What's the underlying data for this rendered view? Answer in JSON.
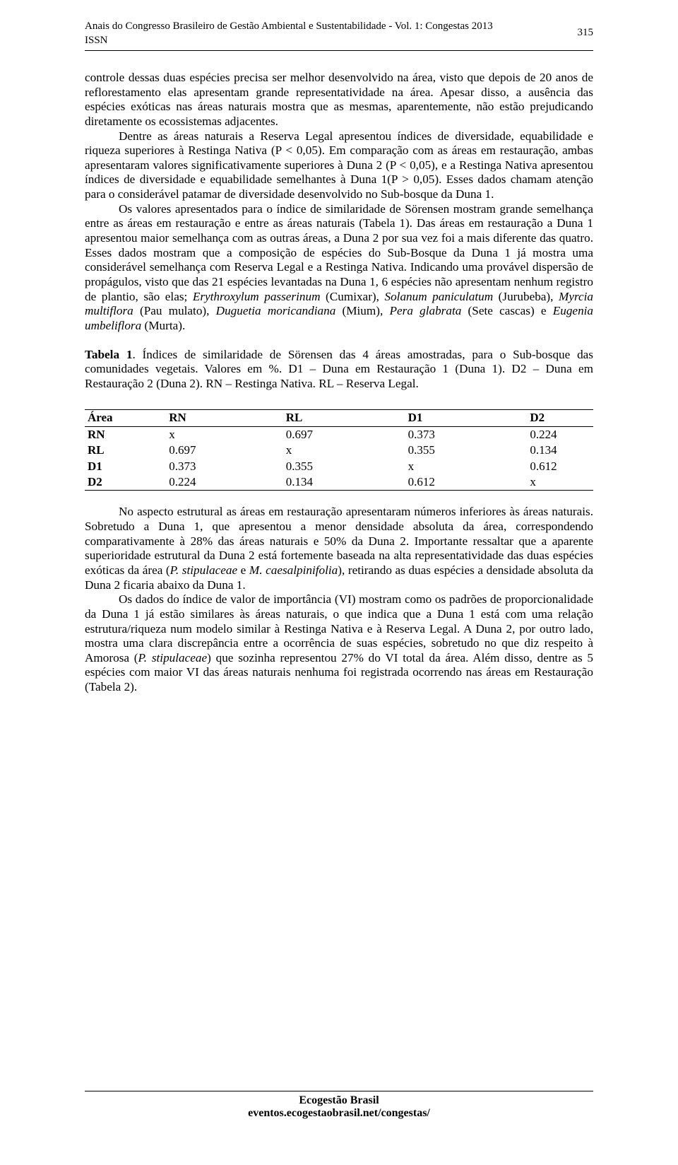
{
  "header": {
    "line1": "Anais do Congresso Brasileiro de Gestão Ambiental e Sustentabilidade - Vol. 1: Congestas 2013",
    "line2": "ISSN",
    "page_number": "315"
  },
  "paragraphs": {
    "p1": "controle dessas duas espécies precisa ser melhor desenvolvido na área, visto que depois de 20 anos de reflorestamento elas apresentam grande representatividade na área. Apesar disso, a ausência das espécies exóticas nas áreas naturais mostra que as mesmas, aparentemente, não estão prejudicando diretamente os ecossistemas adjacentes.",
    "p2": "Dentre as áreas naturais a Reserva Legal apresentou índices de diversidade, equabilidade e riqueza superiores à Restinga Nativa (P < 0,05). Em comparação com as áreas em restauração, ambas apresentaram valores significativamente superiores à Duna 2 (P < 0,05), e a Restinga Nativa apresentou índices de diversidade e equabilidade semelhantes à Duna 1(P > 0,05). Esses dados chamam atenção para o considerável patamar de diversidade desenvolvido no Sub-bosque da Duna 1.",
    "p3a": "Os valores apresentados para o índice de similaridade de Sörensen mostram grande semelhança entre as áreas em restauração e entre as áreas naturais (Tabela 1). Das áreas em restauração a Duna 1 apresentou maior semelhança com as outras áreas, a Duna 2 por sua vez foi a mais diferente das quatro. Esses dados mostram que a composição de espécies do Sub-Bosque da Duna 1 já mostra uma considerável semelhança com Reserva Legal e a Restinga Nativa. Indicando uma provável dispersão de propágulos, visto que das 21 espécies levantadas na Duna 1, 6 espécies não apresentam nenhum registro de plantio, são elas; ",
    "p3_sp1": "Erythroxylum passerinum",
    "p3b": " (Cumixar), ",
    "p3_sp2": "Solanum paniculatum",
    "p3c": " (Jurubeba), ",
    "p3_sp3": "Myrcia multiflora",
    "p3d": " (Pau mulato), ",
    "p3_sp4": "Duguetia moricandiana",
    "p3e": " (Mium), ",
    "p3_sp5": "Pera glabrata",
    "p3f": " (Sete cascas) e ",
    "p3_sp6": "Eugenia umbeliflora",
    "p3g": " (Murta).",
    "tab_label": "Tabela 1",
    "tab_caption": ". Índices de similaridade de Sörensen das 4 áreas amostradas, para o Sub-bosque das comunidades vegetais. Valores em %. D1 – Duna em Restauração 1 (Duna 1). D2 – Duna em Restauração 2 (Duna 2). RN – Restinga Nativa. RL – Reserva Legal.",
    "p4a": "No aspecto estrutural as áreas em restauração apresentaram números inferiores às áreas naturais. Sobretudo a Duna 1, que apresentou a menor densidade absoluta da área, correspondendo comparativamente à 28% das áreas naturais e 50% da Duna 2. Importante ressaltar que a aparente superioridade estrutural da Duna 2 está fortemente baseada na alta representatividade das duas espécies exóticas da área (",
    "p4_sp1": "P. stipulaceae",
    "p4b": " e ",
    "p4_sp2": "M. caesalpinifolia",
    "p4c": "), retirando as duas espécies a densidade absoluta da Duna 2 ficaria abaixo da Duna 1.",
    "p5a": "Os dados do índice de valor de importância (VI) mostram como os padrões de proporcionalidade da Duna 1 já estão similares às áreas naturais, o que indica que a Duna 1 está com uma relação estrutura/riqueza num modelo similar à Restinga Nativa e à Reserva Legal. A Duna 2, por outro lado, mostra uma clara discrepância entre a ocorrência de suas espécies, sobretudo no que diz respeito à Amorosa (",
    "p5_sp1": "P. stipulaceae",
    "p5b": ") que sozinha representou 27% do VI total da área. Além disso, dentre as 5 espécies com maior VI das áreas naturais nenhuma foi registrada ocorrendo nas áreas em Restauração (Tabela 2)."
  },
  "table": {
    "columns": [
      "Área",
      "RN",
      "RL",
      "D1",
      "D2"
    ],
    "rows": [
      [
        "RN",
        "x",
        "0.697",
        "0.373",
        "0.224"
      ],
      [
        "RL",
        "0.697",
        "x",
        "0.355",
        "0.134"
      ],
      [
        "D1",
        "0.373",
        "0.355",
        "x",
        "0.612"
      ],
      [
        "D2",
        "0.224",
        "0.134",
        "0.612",
        "x"
      ]
    ]
  },
  "footer": {
    "line1": "Ecogestão Brasil",
    "line2": "eventos.ecogestaobrasil.net/congestas/"
  }
}
